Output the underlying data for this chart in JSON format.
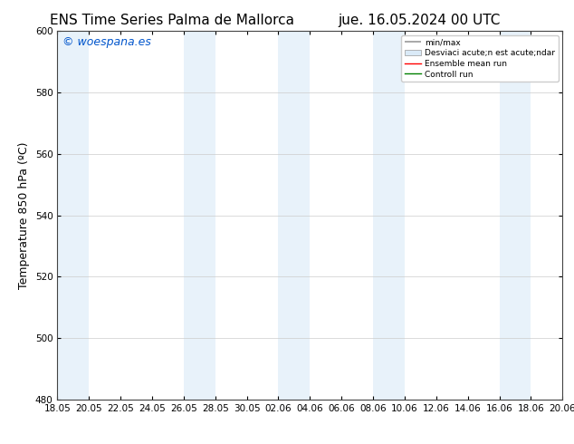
{
  "title_left": "ENS Time Series Palma de Mallorca",
  "title_right": "jue. 16.05.2024 00 UTC",
  "ylabel": "Temperature 850 hPa (ºC)",
  "watermark": "© woespana.es",
  "ylim": [
    480,
    600
  ],
  "yticks": [
    480,
    500,
    520,
    540,
    560,
    580,
    600
  ],
  "xtick_labels": [
    "18.05",
    "20.05",
    "22.05",
    "24.05",
    "26.05",
    "28.05",
    "30.05",
    "02.06",
    "04.06",
    "06.06",
    "08.06",
    "10.06",
    "12.06",
    "14.06",
    "16.06",
    "18.06",
    "20.06"
  ],
  "background_color": "#ffffff",
  "shaded_band_color": "#daeaf7",
  "shaded_band_alpha": 0.6,
  "band_ranges": [
    [
      0,
      1
    ],
    [
      4,
      5
    ],
    [
      7,
      8
    ],
    [
      10,
      11
    ],
    [
      14,
      15
    ]
  ],
  "legend_label_minmax": "min/max",
  "legend_label_std": "Desviaci acute;n est acute;ndar",
  "legend_label_ensemble": "Ensemble mean run",
  "legend_label_control": "Controll run",
  "grid_color": "#cccccc",
  "title_fontsize": 11,
  "tick_fontsize": 7.5,
  "ylabel_fontsize": 9,
  "watermark_color": "#0055cc",
  "watermark_fontsize": 9
}
